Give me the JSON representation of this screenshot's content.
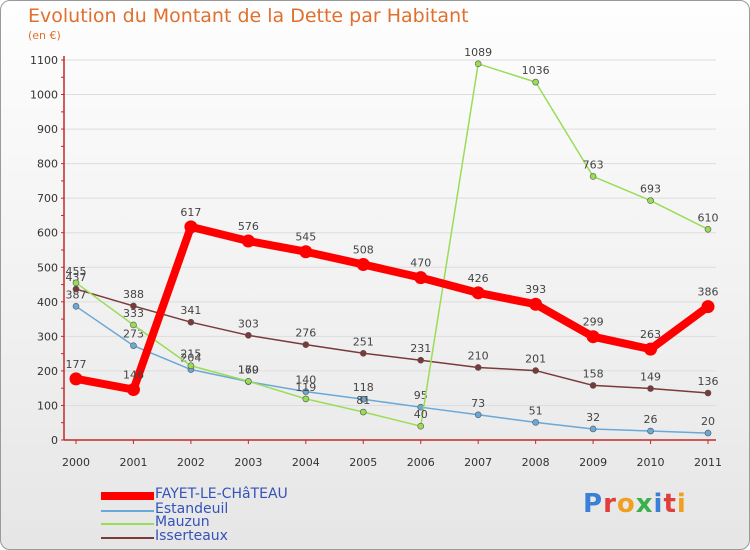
{
  "title": "Evolution du Montant de la Dette par Habitant",
  "subtitle": "(en €)",
  "logo": "Proxiti",
  "colors": {
    "title": "#e0702e",
    "axis": "#c62828",
    "grid": "#dddddd",
    "legend_text": "#3553b8"
  },
  "chart_data": {
    "type": "line",
    "title": "Evolution du Montant de la Dette par Habitant",
    "ylabel": "(en €)",
    "xlabel": "",
    "ylim": [
      0,
      1100
    ],
    "yticks": [
      0,
      100,
      200,
      300,
      400,
      500,
      600,
      700,
      800,
      900,
      1000,
      1100
    ],
    "grid": "horizontal",
    "legend_position": "bottom-left",
    "x": [
      "2000",
      "2001",
      "2002",
      "2003",
      "2004",
      "2005",
      "2006",
      "2007",
      "2008",
      "2009",
      "2010",
      "2011"
    ],
    "series": [
      {
        "name": "FAYET-LE-CHâTEAU",
        "color": "#ff0000",
        "width": 8,
        "values": [
          177,
          146,
          617,
          576,
          545,
          508,
          470,
          426,
          393,
          299,
          263,
          386
        ]
      },
      {
        "name": "Estandeuil",
        "color": "#6aa8d8",
        "width": 1.5,
        "values": [
          387,
          273,
          204,
          169,
          140,
          118,
          95,
          73,
          51,
          32,
          26,
          20
        ]
      },
      {
        "name": "Mauzun",
        "color": "#99dd55",
        "width": 1.5,
        "values": [
          455,
          333,
          215,
          170,
          119,
          81,
          40,
          1089,
          1036,
          763,
          693,
          610
        ]
      },
      {
        "name": "Isserteaux",
        "color": "#7a3a3a",
        "width": 1.5,
        "values": [
          437,
          388,
          341,
          303,
          276,
          251,
          231,
          210,
          201,
          158,
          149,
          136
        ]
      }
    ]
  }
}
